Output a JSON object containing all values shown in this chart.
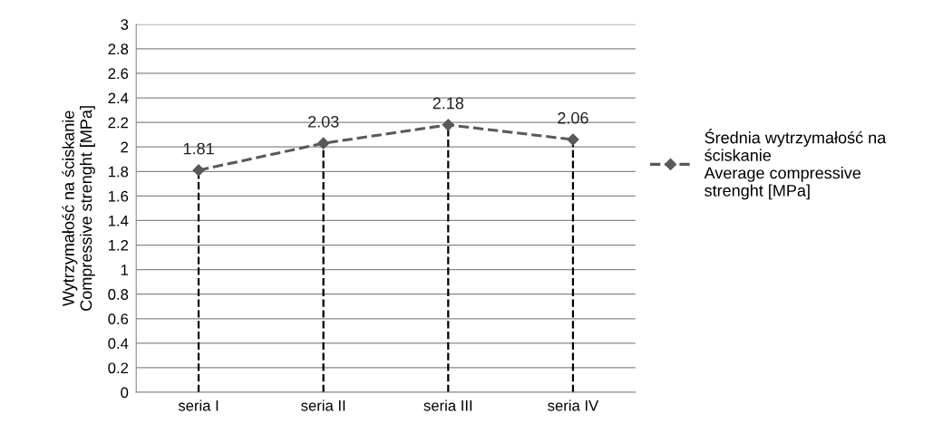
{
  "chart_data": {
    "type": "line",
    "ylabel": "Wytrzymałość na ściskanie\nCompressive strenght [MPa]",
    "categories": [
      "seria I",
      "seria II",
      "seria III",
      "seria IV"
    ],
    "series": [
      {
        "name": "Średnia wytrzymałość na\nściskanie\nAverage compressive\nstrenght [MPa]",
        "color": "#595959",
        "values": [
          1.81,
          2.03,
          2.18,
          2.06
        ],
        "errors": [
          [
            1.81,
            0
          ],
          [
            2.03,
            0
          ],
          [
            2.18,
            0
          ],
          [
            2.06,
            0
          ]
        ],
        "line_style": "dashed",
        "marker": "diamond"
      }
    ],
    "data_labels": true,
    "ylim": [
      0,
      3
    ],
    "yticks": [
      0,
      0.2,
      0.4,
      0.6,
      0.8,
      1,
      1.2,
      1.4,
      1.6,
      1.8,
      2,
      2.2,
      2.4,
      2.6,
      2.8,
      3
    ],
    "grid": "y",
    "legend": "right"
  }
}
